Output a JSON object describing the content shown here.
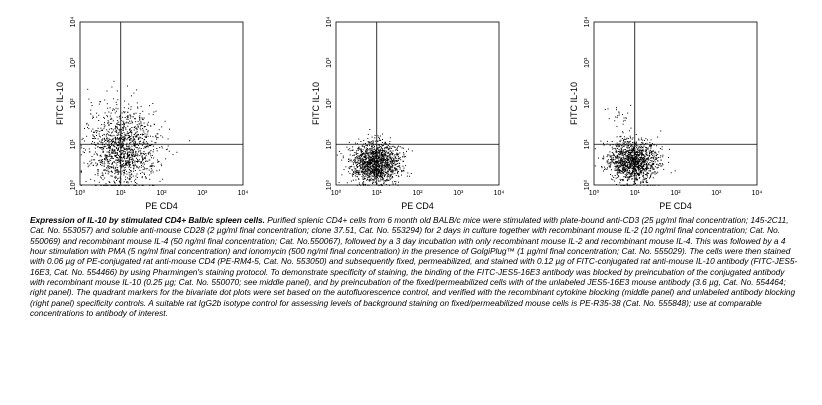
{
  "chart_data": [
    {
      "type": "scatter",
      "panel": "left",
      "xlabel": "PE CD4",
      "ylabel": "FITC IL-10",
      "xscale": "log",
      "yscale": "log",
      "xlim": [
        1,
        10000
      ],
      "ylim": [
        1,
        10000
      ],
      "x_ticks": [
        "10⁰",
        "10¹",
        "10²",
        "10³",
        "10⁴"
      ],
      "y_ticks": [
        "10⁰",
        "10¹",
        "10²",
        "10³",
        "10⁴"
      ],
      "quadrant_marker": {
        "x": 10,
        "y": 10
      },
      "clusters": [
        {
          "center": [
            11,
            8
          ],
          "spread": [
            0.42,
            0.5
          ],
          "count": 1300
        }
      ]
    },
    {
      "type": "scatter",
      "panel": "middle",
      "xlabel": "PE CD4",
      "ylabel": "FITC IL-10",
      "xscale": "log",
      "yscale": "log",
      "xlim": [
        1,
        10000
      ],
      "ylim": [
        1,
        10000
      ],
      "x_ticks": [
        "10⁰",
        "10¹",
        "10²",
        "10³",
        "10⁴"
      ],
      "y_ticks": [
        "10⁰",
        "10¹",
        "10²",
        "10³",
        "10⁴"
      ],
      "quadrant_marker": {
        "x": 10,
        "y": 10
      },
      "clusters": [
        {
          "center": [
            9,
            3.5
          ],
          "spread": [
            0.3,
            0.25
          ],
          "count": 1400
        }
      ]
    },
    {
      "type": "scatter",
      "panel": "right",
      "xlabel": "PE CD4",
      "ylabel": "FITC IL-10",
      "xscale": "log",
      "yscale": "log",
      "xlim": [
        1,
        10000
      ],
      "ylim": [
        1,
        10000
      ],
      "x_ticks": [
        "10⁰",
        "10¹",
        "10²",
        "10³",
        "10⁴"
      ],
      "y_ticks": [
        "10⁰",
        "10¹",
        "10²",
        "10³",
        "10⁴"
      ],
      "quadrant_marker": {
        "x": 10,
        "y": 10
      },
      "clusters": [
        {
          "center": [
            9,
            4
          ],
          "spread": [
            0.3,
            0.25
          ],
          "count": 1300
        },
        {
          "center": [
            4,
            45
          ],
          "spread": [
            0.15,
            0.25
          ],
          "count": 25
        }
      ]
    }
  ],
  "caption": {
    "title": "Expression of IL-10 by stimulated CD4+ Balb/c spleen cells.",
    "body": "Purified splenic CD4+ cells from 6 month old BALB/c mice were stimulated with plate-bound anti-CD3 (25 µg/ml final concentration; 145-2C11, Cat. No. 553057) and soluble anti-mouse CD28 (2 µg/ml final concentration; clone 37.51, Cat. No. 553294) for 2 days in culture together with recombinant mouse IL-2 (10 ng/ml final concentration; Cat. No. 550069) and recombinant mouse IL-4 (50 ng/ml final concentration; Cat. No.550067), followed by a 3 day incubation with only recombinant mouse IL-2 and recombinant mouse IL-4. This was followed by a 4 hour stimulation with PMA (5 ng/ml final concentration) and ionomycin (500 ng/ml final concentration) in the presence of GolgiPlug™ (1 µg/ml final concentration; Cat. No. 555029). The cells were then stained with 0.06 µg of PE-conjugated rat anti-mouse CD4 (PE-RM4-5, Cat. No. 553050) and subsequently fixed, permeabilized, and stained with 0.12 µg of FITC-conjugated rat anti-mouse IL-10 antibody (FITC-JES5-16E3, Cat. No. 554466) by using Pharmingen's staining protocol. To demonstrate specificity of staining, the binding of the FITC-JES5-16E3 antibody was blocked by preincubation of the conjugated antibody with recombinant mouse IL-10 (0.25 µg; Cat. No. 550070; see middle panel), and by preincubation of the fixed/permeabilized cells with of the unlabeled JES5-16E3 mouse antibody (3.6 µg, Cat. No. 554464; right panel). The quadrant markers for the bivariate dot plots were set based on the autofluorescence control, and verified with the recombinant cytokine blocking (middle panel) and unlabeled antibody blocking (right panel) specificity controls. A suitable rat IgG2b isotype control for assessing levels of background staining on fixed/permeabilized mouse cells is PE-R35-38 (Cat. No. 555848); use at comparable concentrations to antibody of interest."
  }
}
